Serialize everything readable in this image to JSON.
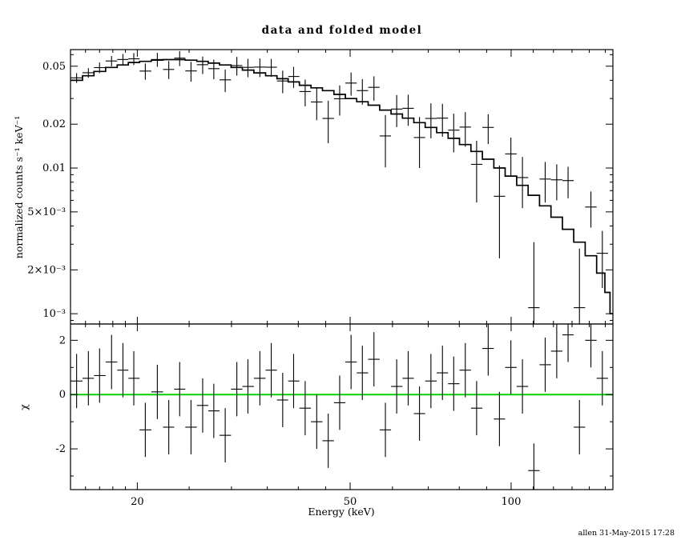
{
  "title": "data and folded model",
  "footer": "allen 31-May-2015 17:28",
  "colors": {
    "axis": "#000000",
    "series": "#000000",
    "zero_line": "#00d000",
    "background": "#ffffff"
  },
  "chart_data": {
    "type": "line",
    "title": "data and folded model",
    "layout": "two stacked panels sharing a log x-axis: top = spectrum with stepped folded model and data crosses, bottom = chi residuals with green zero line",
    "x_axis": {
      "label": "Energy (keV)",
      "scale": "log",
      "min": 15,
      "max": 155,
      "major_ticks": [
        20,
        50,
        100
      ],
      "minor_ticks": [
        16,
        17,
        18,
        19,
        25,
        30,
        35,
        40,
        45,
        60,
        70,
        80,
        90,
        110,
        120,
        130,
        140,
        150
      ]
    },
    "energies": [
      15.4,
      16.2,
      17.0,
      17.9,
      18.8,
      19.7,
      20.7,
      21.8,
      22.9,
      24.0,
      25.2,
      26.5,
      27.8,
      29.2,
      30.7,
      32.2,
      33.9,
      35.6,
      37.4,
      39.2,
      41.2,
      43.3,
      45.5,
      47.8,
      50.2,
      52.7,
      55.4,
      58.2,
      61.1,
      64.2,
      67.4,
      70.8,
      74.4,
      78.1,
      82.1,
      86.2,
      90.6,
      95.1,
      99.9,
      105.0,
      110.3,
      115.8,
      121.7,
      127.8,
      134.2,
      141.0,
      148.1
    ],
    "top_panel": {
      "ylabel": "normalized counts s⁻¹ keV⁻¹",
      "yscale": "log",
      "ymin": 0.00085,
      "ymax": 0.065,
      "ytick_labels": [
        {
          "value": 0.05,
          "label": "0.05"
        },
        {
          "value": 0.02,
          "label": "0.02"
        },
        {
          "value": 0.01,
          "label": "0.01"
        },
        {
          "value": 0.005,
          "label": "5×10⁻³"
        },
        {
          "value": 0.002,
          "label": "2×10⁻³"
        },
        {
          "value": 0.001,
          "label": "10⁻³"
        }
      ],
      "minor_ticks": [
        0.0009,
        0.003,
        0.004,
        0.006,
        0.007,
        0.008,
        0.009,
        0.03,
        0.04,
        0.06
      ],
      "data_values": [
        0.0416,
        0.0451,
        0.0489,
        0.0543,
        0.0556,
        0.0562,
        0.0463,
        0.0556,
        0.0475,
        0.0568,
        0.0464,
        0.0512,
        0.0481,
        0.0403,
        0.0505,
        0.0491,
        0.0493,
        0.0492,
        0.0396,
        0.0425,
        0.0335,
        0.0284,
        0.0219,
        0.0299,
        0.0383,
        0.034,
        0.0358,
        0.0166,
        0.0254,
        0.0257,
        0.0162,
        0.0219,
        0.022,
        0.0182,
        0.0191,
        0.0106,
        0.019,
        0.0064,
        0.0125,
        0.0086,
        0.0011,
        0.0084,
        0.0083,
        0.0082,
        0.0011,
        0.0054,
        0.0026
      ],
      "data_errors": [
        0.0032,
        0.0034,
        0.0041,
        0.0044,
        0.0051,
        0.0053,
        0.0059,
        0.0061,
        0.0067,
        0.0067,
        0.0072,
        0.007,
        0.0074,
        0.0071,
        0.0074,
        0.0071,
        0.0072,
        0.0069,
        0.007,
        0.007,
        0.007,
        0.0071,
        0.0071,
        0.007,
        0.0069,
        0.0068,
        0.0068,
        0.0065,
        0.0063,
        0.0062,
        0.0062,
        0.0059,
        0.0056,
        0.0054,
        0.0051,
        0.0048,
        0.0044,
        0.004,
        0.0037,
        0.0033,
        0.002,
        0.0026,
        0.0023,
        0.002,
        0.0017,
        0.0015,
        0.0011
      ],
      "model_energies": [
        15.4,
        16.2,
        17.0,
        17.9,
        18.8,
        19.7,
        20.7,
        21.8,
        22.9,
        24.0,
        25.2,
        26.5,
        27.8,
        29.2,
        30.7,
        32.2,
        33.9,
        35.6,
        37.4,
        39.2,
        41.2,
        43.3,
        45.5,
        47.8,
        50.2,
        52.7,
        55.4,
        58.2,
        61.1,
        64.2,
        67.4,
        70.8,
        74.4,
        78.1,
        82.1,
        86.2,
        90.6,
        95.1,
        99.9,
        105.0,
        110.3,
        115.8,
        121.7,
        127.8,
        134.2,
        141.0,
        148.1,
        151.4,
        154.8
      ],
      "model_values": [
        0.04,
        0.043,
        0.046,
        0.049,
        0.051,
        0.053,
        0.054,
        0.055,
        0.0555,
        0.0555,
        0.055,
        0.054,
        0.0525,
        0.051,
        0.049,
        0.047,
        0.045,
        0.043,
        0.041,
        0.039,
        0.037,
        0.0355,
        0.034,
        0.032,
        0.03,
        0.0285,
        0.027,
        0.025,
        0.0235,
        0.022,
        0.0205,
        0.019,
        0.0175,
        0.016,
        0.0145,
        0.013,
        0.0115,
        0.01,
        0.0088,
        0.0076,
        0.0065,
        0.0055,
        0.0046,
        0.0038,
        0.0031,
        0.0025,
        0.0019,
        0.0014,
        0.001
      ]
    },
    "bottom_panel": {
      "ylabel": "χ",
      "yscale": "linear",
      "ymin": -3.5,
      "ymax": 2.6,
      "ytick_labels": [
        {
          "value": -2,
          "label": "-2"
        },
        {
          "value": 0,
          "label": "0"
        },
        {
          "value": 2,
          "label": "2"
        }
      ],
      "minor_ticks": [
        -3,
        -1,
        1
      ],
      "zero_line": 0,
      "chi_values": [
        0.5,
        0.6,
        0.7,
        1.2,
        0.9,
        0.6,
        -1.3,
        0.1,
        -1.2,
        0.2,
        -1.2,
        -0.4,
        -0.6,
        -1.5,
        0.2,
        0.3,
        0.6,
        0.9,
        -0.2,
        0.5,
        -0.5,
        -1.0,
        -1.7,
        -0.3,
        1.2,
        0.8,
        1.3,
        -1.3,
        0.3,
        0.6,
        -0.7,
        0.5,
        0.8,
        0.4,
        0.9,
        -0.5,
        1.7,
        -0.9,
        1.0,
        0.3,
        -2.8,
        1.1,
        1.6,
        2.2,
        -1.2,
        2.0,
        0.6
      ],
      "chi_error": 1
    }
  }
}
